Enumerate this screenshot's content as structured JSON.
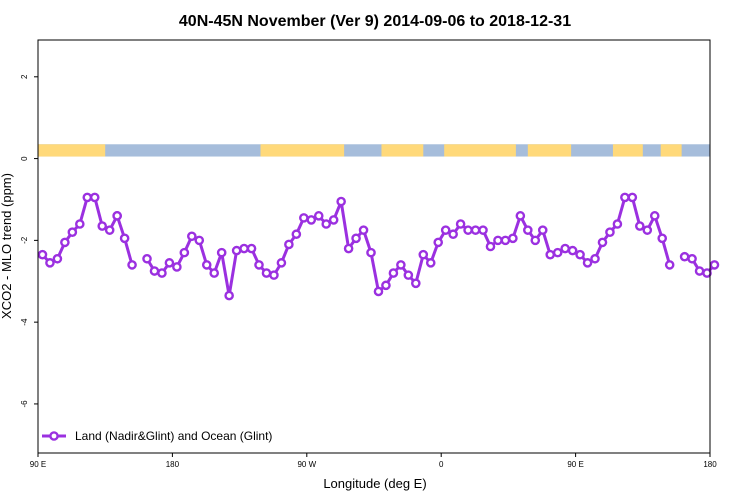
{
  "chart_data": {
    "type": "line",
    "title": "40N-45N November (Ver 9)   2014-09-06 to 2018-12-31",
    "xlabel": "Longitude (deg E)",
    "ylabel": "XCO2 - MLO trend (ppm)",
    "x_ticks": [
      {
        "value": 90,
        "label": "90 E"
      },
      {
        "value": 180,
        "label": "180"
      },
      {
        "value": 270,
        "label": "90 W"
      },
      {
        "value": 360,
        "label": "0"
      },
      {
        "value": 450,
        "label": "90 E"
      },
      {
        "value": 540,
        "label": "180"
      }
    ],
    "y_ticks": [
      {
        "value": 2,
        "label": "2"
      },
      {
        "value": 0,
        "label": "0"
      },
      {
        "value": -2,
        "label": "-2"
      },
      {
        "value": -4,
        "label": "-4"
      },
      {
        "value": -6,
        "label": "-6"
      }
    ],
    "xlim": [
      90,
      540
    ],
    "ylim": [
      -7.2,
      2.9
    ],
    "grid": false,
    "legend_position": "bottom-left",
    "colors": {
      "series": "#9b30e0",
      "land": "#ffd97a",
      "ocean": "#a6bddb"
    },
    "land_ocean_band": {
      "y_range": [
        0.05,
        0.35
      ],
      "land_segments": [
        [
          90,
          135
        ],
        [
          239,
          295
        ],
        [
          320,
          348
        ],
        [
          362,
          410
        ],
        [
          418,
          447
        ],
        [
          475,
          495
        ],
        [
          507,
          521
        ]
      ]
    },
    "series": [
      {
        "name": "Land (Nadir&Glint) and Ocean (Glint)",
        "segments": [
          {
            "x": [
              93,
              98,
              103,
              108,
              113,
              118,
              123,
              128,
              133,
              138,
              143
            ],
            "y": [
              -2.35,
              -2.55,
              -2.45,
              -2.05,
              -1.8,
              -1.6,
              -0.95,
              -0.95,
              -1.65,
              -1.75,
              -1.4
            ]
          },
          {
            "x": [
              143,
              148,
              153
            ],
            "y": [
              -1.4,
              -1.95,
              -2.6
            ]
          },
          {
            "x": [
              163,
              168,
              173,
              178,
              183,
              188,
              193,
              198,
              203,
              208,
              213,
              218,
              223,
              228,
              233,
              238,
              243,
              248,
              253,
              258,
              263,
              268,
              273,
              278,
              283,
              288,
              293,
              298,
              303,
              308,
              313,
              318,
              323,
              328,
              333,
              338,
              343,
              348,
              353,
              358,
              363,
              368,
              373,
              378,
              383,
              388,
              393,
              398,
              403,
              408,
              413,
              418,
              423,
              428,
              433,
              438,
              443,
              448,
              453,
              458,
              463,
              468,
              473,
              478,
              483,
              488,
              493,
              498,
              503,
              508,
              513,
              518,
              523
            ],
            "y": [
              -2.45,
              -2.75,
              -2.8,
              -2.55,
              -2.65,
              -2.3,
              -1.9,
              -2.0,
              -2.6,
              -2.8,
              -2.3,
              -3.35,
              -2.25,
              -2.2,
              -2.2,
              -2.6,
              -2.8,
              -2.85,
              -2.55,
              -2.1,
              -1.85,
              -1.45,
              -1.5,
              -1.4,
              -1.6,
              -1.5,
              -1.05,
              -2.2,
              -1.95,
              -1.75,
              -2.3,
              -3.25,
              -3.1,
              -2.8,
              -2.6,
              -2.85,
              -3.05,
              -2.35,
              -2.55,
              -2.05,
              -1.75,
              -1.85,
              -1.6,
              -1.75,
              -1.75,
              -1.75,
              -2.15,
              -2.0,
              -2.0,
              -1.95,
              -1.4,
              -1.75,
              -2.0,
              -1.75,
              -2.35,
              -2.3,
              -2.2,
              -2.25,
              -2.35,
              -2.55,
              -2.45,
              -2.05,
              -1.8,
              -1.6,
              -0.95,
              -0.95,
              -1.65,
              -1.75,
              -1.4,
              -1.95,
              -2.6,
              null,
              -2.4
            ]
          },
          {
            "x": [
              528,
              533,
              538,
              543
            ],
            "y": [
              -2.45,
              -2.75,
              -2.8,
              -2.6
            ]
          }
        ]
      }
    ]
  }
}
